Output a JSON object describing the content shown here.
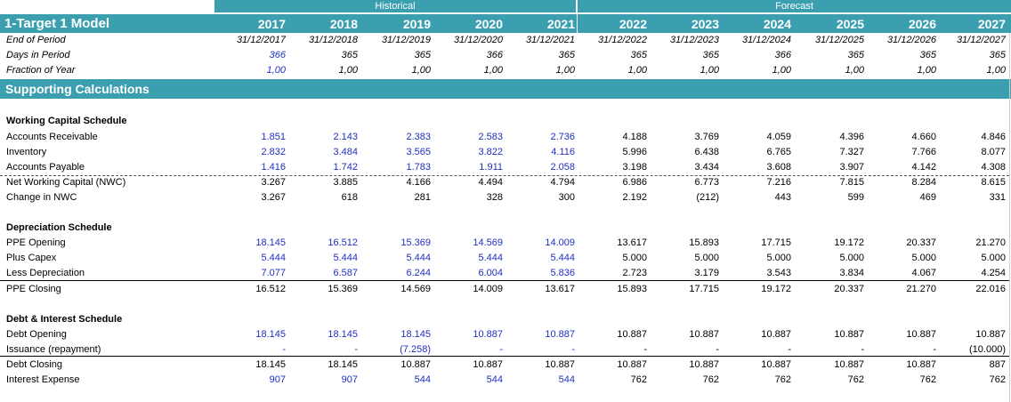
{
  "title": "1-Target 1  Model",
  "section_historical": "Historical",
  "section_forecast": "Forecast",
  "years": [
    "2017",
    "2018",
    "2019",
    "2020",
    "2021",
    "2022",
    "2023",
    "2024",
    "2025",
    "2026",
    "2027"
  ],
  "header_rows": [
    {
      "label": "End of Period",
      "values": [
        "31/12/2017",
        "31/12/2018",
        "31/12/2019",
        "31/12/2020",
        "31/12/2021",
        "31/12/2022",
        "31/12/2023",
        "31/12/2024",
        "31/12/2025",
        "31/12/2026",
        "31/12/2027"
      ]
    },
    {
      "label": "Days in Period",
      "values": [
        "366",
        "365",
        "365",
        "366",
        "365",
        "365",
        "365",
        "366",
        "365",
        "365",
        "365"
      ]
    },
    {
      "label": "Fraction of Year",
      "values": [
        "1,00",
        "1,00",
        "1,00",
        "1,00",
        "1,00",
        "1,00",
        "1,00",
        "1,00",
        "1,00",
        "1,00",
        "1,00"
      ]
    }
  ],
  "supporting_title": "Supporting Calculations",
  "sections": [
    {
      "title": "Working Capital Schedule",
      "rows": [
        {
          "label": "Accounts Receivable",
          "values": [
            "1.851",
            "2.143",
            "2.383",
            "2.583",
            "2.736",
            "4.188",
            "3.769",
            "4.059",
            "4.396",
            "4.660",
            "4.846"
          ]
        },
        {
          "label": "Inventory",
          "values": [
            "2.832",
            "3.484",
            "3.565",
            "3.822",
            "4.116",
            "5.996",
            "6.438",
            "6.765",
            "7.327",
            "7.766",
            "8.077"
          ]
        },
        {
          "label": "Accounts Payable",
          "values": [
            "1.416",
            "1.742",
            "1.783",
            "1.911",
            "2.058",
            "3.198",
            "3.434",
            "3.608",
            "3.907",
            "4.142",
            "4.308"
          ]
        },
        {
          "label": "Net Working Capital (NWC)",
          "values": [
            "3.267",
            "3.885",
            "4.166",
            "4.494",
            "4.794",
            "6.986",
            "6.773",
            "7.216",
            "7.815",
            "8.284",
            "8.615"
          ]
        },
        {
          "label": "Change in NWC",
          "values": [
            "3.267",
            "618",
            "281",
            "328",
            "300",
            "2.192",
            "(212)",
            "443",
            "599",
            "469",
            "331"
          ]
        }
      ]
    },
    {
      "title": "Depreciation Schedule",
      "rows": [
        {
          "label": "PPE Opening",
          "values": [
            "18.145",
            "16.512",
            "15.369",
            "14.569",
            "14.009",
            "13.617",
            "15.893",
            "17.715",
            "19.172",
            "20.337",
            "21.270"
          ]
        },
        {
          "label": "Plus Capex",
          "values": [
            "5.444",
            "5.444",
            "5.444",
            "5.444",
            "5.444",
            "5.000",
            "5.000",
            "5.000",
            "5.000",
            "5.000",
            "5.000"
          ]
        },
        {
          "label": "Less Depreciation",
          "values": [
            "7.077",
            "6.587",
            "6.244",
            "6.004",
            "5.836",
            "2.723",
            "3.179",
            "3.543",
            "3.834",
            "4.067",
            "4.254"
          ]
        },
        {
          "label": "PPE Closing",
          "values": [
            "16.512",
            "15.369",
            "14.569",
            "14.009",
            "13.617",
            "15.893",
            "17.715",
            "19.172",
            "20.337",
            "21.270",
            "22.016"
          ]
        }
      ]
    },
    {
      "title": "Debt & Interest Schedule",
      "rows": [
        {
          "label": "Debt Opening",
          "values": [
            "18.145",
            "18.145",
            "18.145",
            "10.887",
            "10.887",
            "10.887",
            "10.887",
            "10.887",
            "10.887",
            "10.887",
            "10.887"
          ]
        },
        {
          "label": "Issuance (repayment)",
          "values": [
            "-",
            "-",
            "(7.258)",
            "-",
            "-",
            "-",
            "-",
            "-",
            "-",
            "-",
            "(10.000)"
          ]
        },
        {
          "label": "Debt Closing",
          "values": [
            "18.145",
            "18.145",
            "10.887",
            "10.887",
            "10.887",
            "10.887",
            "10.887",
            "10.887",
            "10.887",
            "10.887",
            "887"
          ]
        },
        {
          "label": "Interest Expense",
          "values": [
            "907",
            "907",
            "544",
            "544",
            "544",
            "762",
            "762",
            "762",
            "762",
            "762",
            "762"
          ]
        }
      ]
    }
  ],
  "colors": {
    "accent": "#3b9fb0",
    "input_blue": "#1f2fbf"
  }
}
